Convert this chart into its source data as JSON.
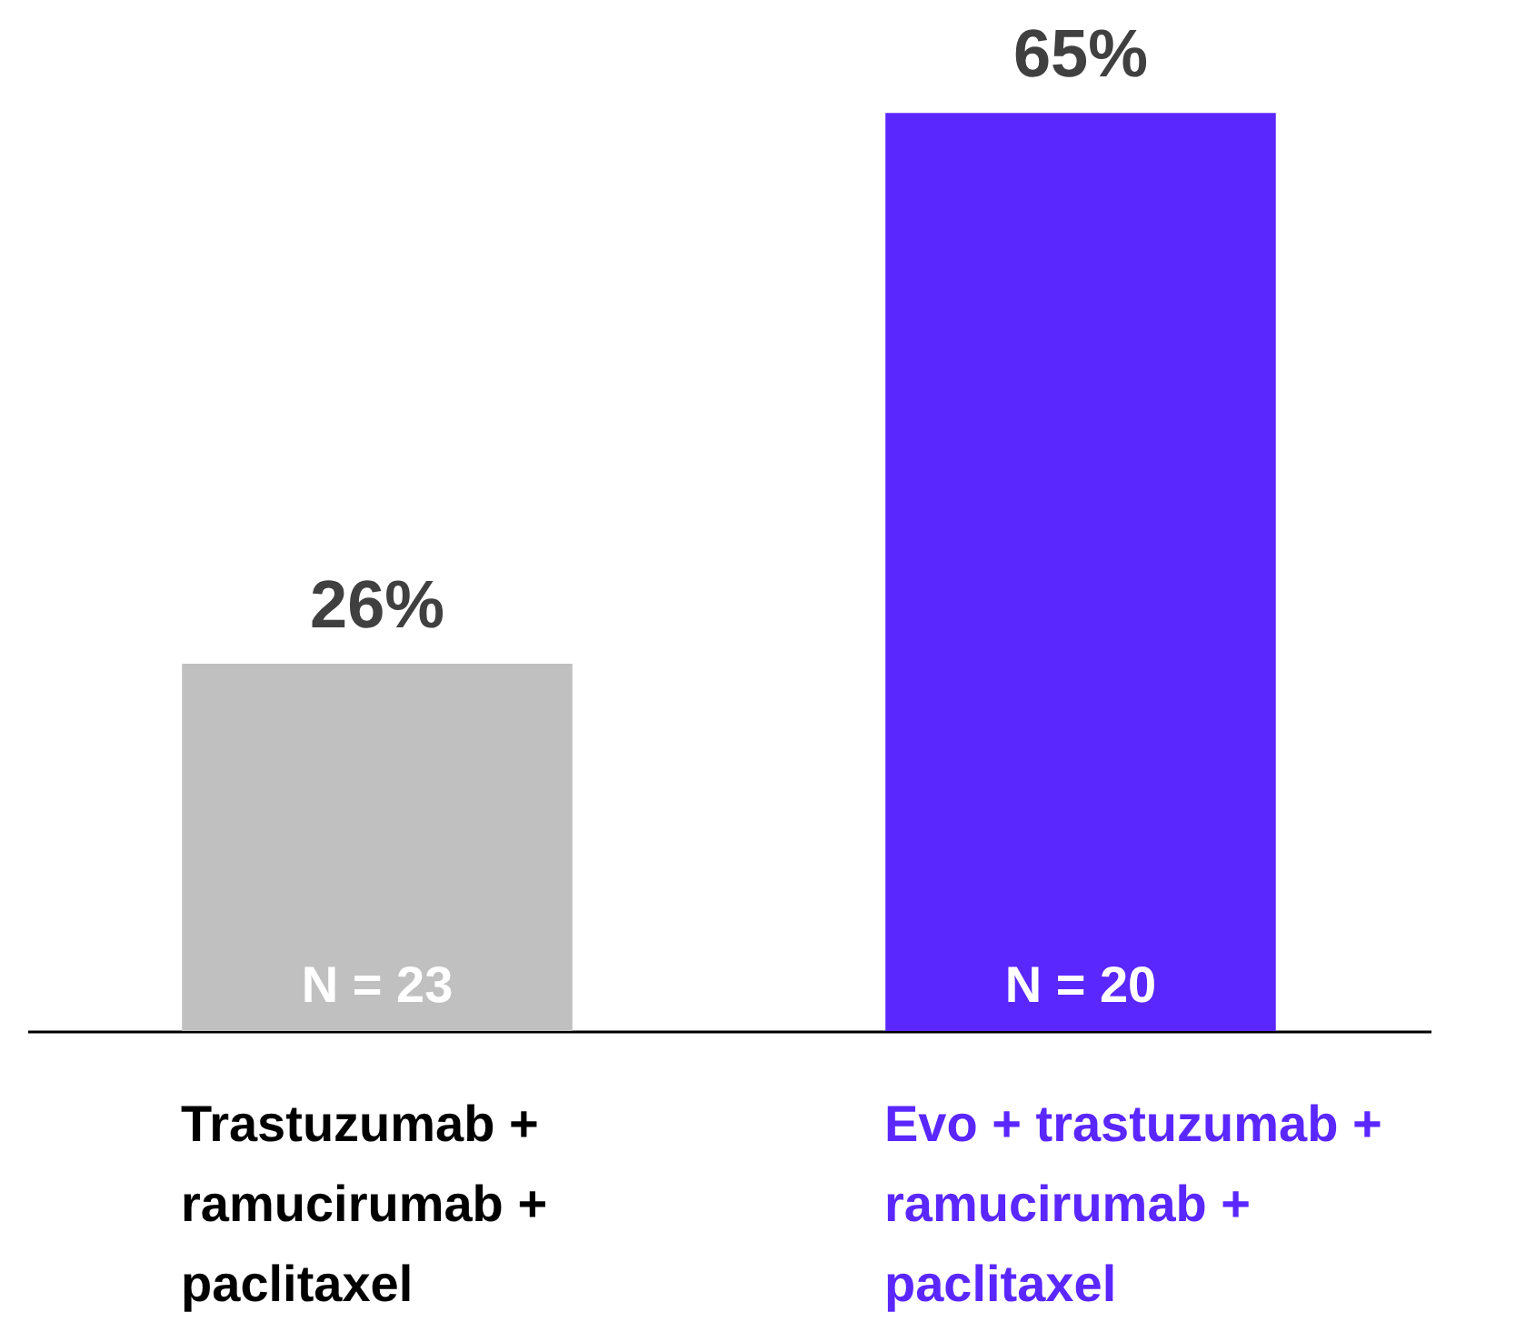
{
  "chart_data": {
    "type": "bar",
    "categories": [
      "Trastuzumab + ramucirumab + paclitaxel",
      "Evo + trastuzumab + ramucirumab + paclitaxel"
    ],
    "values": [
      26,
      65
    ],
    "colors": [
      "#c0c0c0",
      "#5b27ff"
    ],
    "value_labels": [
      "26%",
      "65%"
    ],
    "ylim": [
      0,
      73
    ],
    "annotations": [
      "N = 23",
      "N = 20"
    ],
    "legend": false
  }
}
